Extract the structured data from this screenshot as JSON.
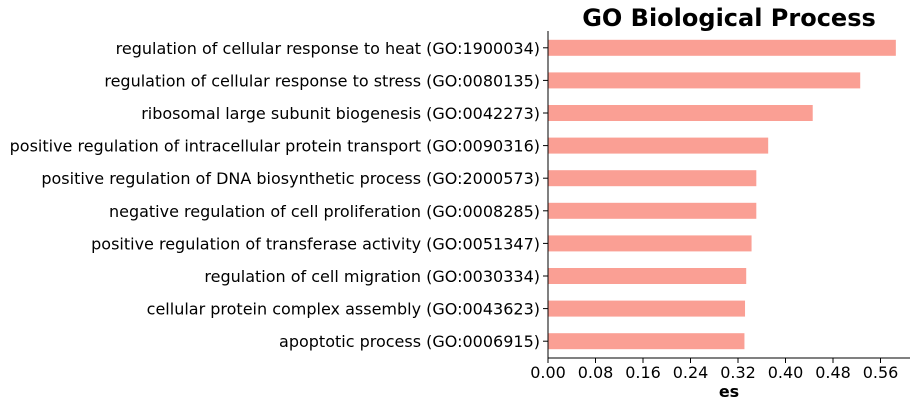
{
  "chart_data": {
    "type": "bar",
    "orientation": "horizontal",
    "title": "GO Biological Process",
    "xlabel": "es",
    "ylabel": "",
    "xlim": [
      0.0,
      0.6
    ],
    "xticks": [
      "0.00",
      "0.08",
      "0.16",
      "0.24",
      "0.32",
      "0.40",
      "0.48",
      "0.56"
    ],
    "bar_color": "#fa9f94",
    "categories": [
      "regulation of cellular response to heat (GO:1900034)",
      "regulation of cellular response to stress (GO:0080135)",
      "ribosomal large subunit biogenesis (GO:0042273)",
      "positive regulation of intracellular protein transport (GO:0090316)",
      "positive regulation of DNA biosynthetic process (GO:2000573)",
      "negative regulation of cell proliferation (GO:0008285)",
      "positive regulation of transferase activity (GO:0051347)",
      "regulation of cell migration (GO:0030334)",
      "cellular protein complex assembly (GO:0043623)",
      "apoptotic process (GO:0006915)"
    ],
    "values": [
      0.585,
      0.525,
      0.445,
      0.37,
      0.35,
      0.35,
      0.342,
      0.333,
      0.331,
      0.33
    ]
  }
}
